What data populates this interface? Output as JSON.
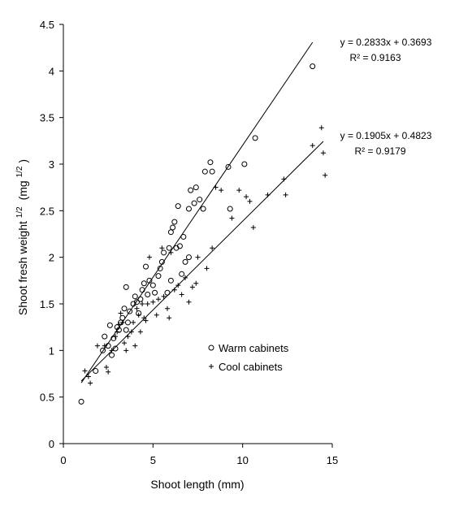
{
  "chart_data": {
    "type": "scatter",
    "xlabel": "Shoot length (mm)",
    "ylabel": {
      "main": "Shoot fresh weight",
      "sup1": "1/2",
      "unit_open": "(mg",
      "sup2": "1/2",
      "unit_close": ")"
    },
    "xlim": [
      0,
      15
    ],
    "ylim": [
      0,
      4.5
    ],
    "x_ticks": [
      0,
      5,
      10,
      15
    ],
    "y_ticks": [
      0,
      0.5,
      1,
      1.5,
      2,
      2.5,
      3,
      3.5,
      4,
      4.5
    ],
    "grid": false,
    "legend_position": "center-right",
    "series": [
      {
        "name": "Warm cabinets",
        "marker": "circle",
        "trendline": {
          "slope": 0.2833,
          "intercept": 0.3693,
          "x_range": [
            1.0,
            13.9
          ],
          "equation": "y = 0.2833x + 0.3693",
          "r2": "R² = 0.9163"
        },
        "points": [
          [
            1.0,
            0.45
          ],
          [
            1.8,
            0.78
          ],
          [
            2.2,
            1.0
          ],
          [
            2.3,
            1.15
          ],
          [
            2.5,
            1.05
          ],
          [
            2.6,
            1.27
          ],
          [
            2.7,
            0.95
          ],
          [
            2.8,
            1.13
          ],
          [
            2.9,
            1.02
          ],
          [
            3.0,
            1.25
          ],
          [
            3.1,
            1.22
          ],
          [
            3.2,
            1.3
          ],
          [
            3.3,
            1.35
          ],
          [
            3.4,
            1.45
          ],
          [
            3.5,
            1.22
          ],
          [
            3.5,
            1.68
          ],
          [
            3.6,
            1.3
          ],
          [
            3.7,
            1.42
          ],
          [
            3.9,
            1.5
          ],
          [
            4.0,
            1.58
          ],
          [
            4.1,
            1.52
          ],
          [
            4.2,
            1.4
          ],
          [
            4.3,
            1.55
          ],
          [
            4.4,
            1.65
          ],
          [
            4.5,
            1.72
          ],
          [
            4.6,
            1.9
          ],
          [
            4.7,
            1.6
          ],
          [
            4.8,
            1.75
          ],
          [
            5.0,
            1.7
          ],
          [
            5.1,
            1.62
          ],
          [
            5.3,
            1.8
          ],
          [
            5.4,
            1.88
          ],
          [
            5.5,
            1.95
          ],
          [
            5.6,
            2.05
          ],
          [
            5.8,
            1.62
          ],
          [
            5.9,
            2.1
          ],
          [
            6.0,
            1.75
          ],
          [
            6.0,
            2.27
          ],
          [
            6.1,
            2.32
          ],
          [
            6.2,
            2.38
          ],
          [
            6.3,
            2.1
          ],
          [
            6.4,
            2.55
          ],
          [
            6.5,
            2.12
          ],
          [
            6.6,
            1.82
          ],
          [
            6.7,
            2.22
          ],
          [
            6.8,
            1.95
          ],
          [
            7.0,
            2.0
          ],
          [
            7.0,
            2.52
          ],
          [
            7.1,
            2.72
          ],
          [
            7.3,
            2.58
          ],
          [
            7.4,
            2.75
          ],
          [
            7.6,
            2.62
          ],
          [
            7.8,
            2.52
          ],
          [
            7.9,
            2.92
          ],
          [
            8.2,
            3.02
          ],
          [
            8.3,
            2.92
          ],
          [
            9.2,
            2.97
          ],
          [
            9.3,
            2.52
          ],
          [
            10.1,
            3.0
          ],
          [
            10.7,
            3.28
          ],
          [
            13.9,
            4.05
          ]
        ]
      },
      {
        "name": "Cool cabinets",
        "marker": "plus",
        "trendline": {
          "slope": 0.1905,
          "intercept": 0.4823,
          "x_range": [
            1.0,
            14.5
          ],
          "equation": "y = 0.1905x + 0.4823",
          "r2": "R² = 0.9179"
        },
        "points": [
          [
            1.2,
            0.78
          ],
          [
            1.4,
            0.72
          ],
          [
            1.5,
            0.65
          ],
          [
            1.9,
            1.05
          ],
          [
            2.3,
            1.05
          ],
          [
            2.4,
            0.82
          ],
          [
            2.5,
            0.77
          ],
          [
            2.7,
            1.0
          ],
          [
            2.9,
            1.15
          ],
          [
            3.0,
            1.2
          ],
          [
            3.1,
            1.28
          ],
          [
            3.2,
            1.4
          ],
          [
            3.3,
            1.3
          ],
          [
            3.4,
            1.08
          ],
          [
            3.5,
            1.0
          ],
          [
            3.6,
            1.15
          ],
          [
            3.8,
            1.2
          ],
          [
            3.9,
            1.3
          ],
          [
            4.0,
            1.05
          ],
          [
            4.1,
            1.45
          ],
          [
            4.2,
            1.38
          ],
          [
            4.3,
            1.2
          ],
          [
            4.4,
            1.5
          ],
          [
            4.5,
            1.35
          ],
          [
            4.6,
            1.32
          ],
          [
            4.7,
            1.5
          ],
          [
            4.8,
            2.0
          ],
          [
            5.0,
            1.52
          ],
          [
            5.2,
            1.38
          ],
          [
            5.3,
            1.55
          ],
          [
            5.5,
            2.1
          ],
          [
            5.6,
            1.58
          ],
          [
            5.8,
            1.45
          ],
          [
            5.9,
            1.35
          ],
          [
            6.0,
            2.05
          ],
          [
            6.2,
            1.65
          ],
          [
            6.4,
            1.7
          ],
          [
            6.6,
            1.6
          ],
          [
            6.8,
            1.78
          ],
          [
            7.0,
            1.52
          ],
          [
            7.2,
            1.68
          ],
          [
            7.4,
            1.72
          ],
          [
            7.5,
            2.0
          ],
          [
            8.0,
            1.88
          ],
          [
            8.3,
            2.1
          ],
          [
            8.5,
            2.75
          ],
          [
            8.8,
            2.72
          ],
          [
            9.4,
            2.42
          ],
          [
            9.8,
            2.72
          ],
          [
            10.2,
            2.65
          ],
          [
            10.4,
            2.6
          ],
          [
            10.6,
            2.32
          ],
          [
            11.4,
            2.67
          ],
          [
            12.3,
            2.84
          ],
          [
            12.4,
            2.67
          ],
          [
            13.9,
            3.2
          ],
          [
            14.4,
            3.39
          ],
          [
            14.5,
            3.12
          ],
          [
            14.6,
            2.88
          ]
        ]
      }
    ]
  }
}
